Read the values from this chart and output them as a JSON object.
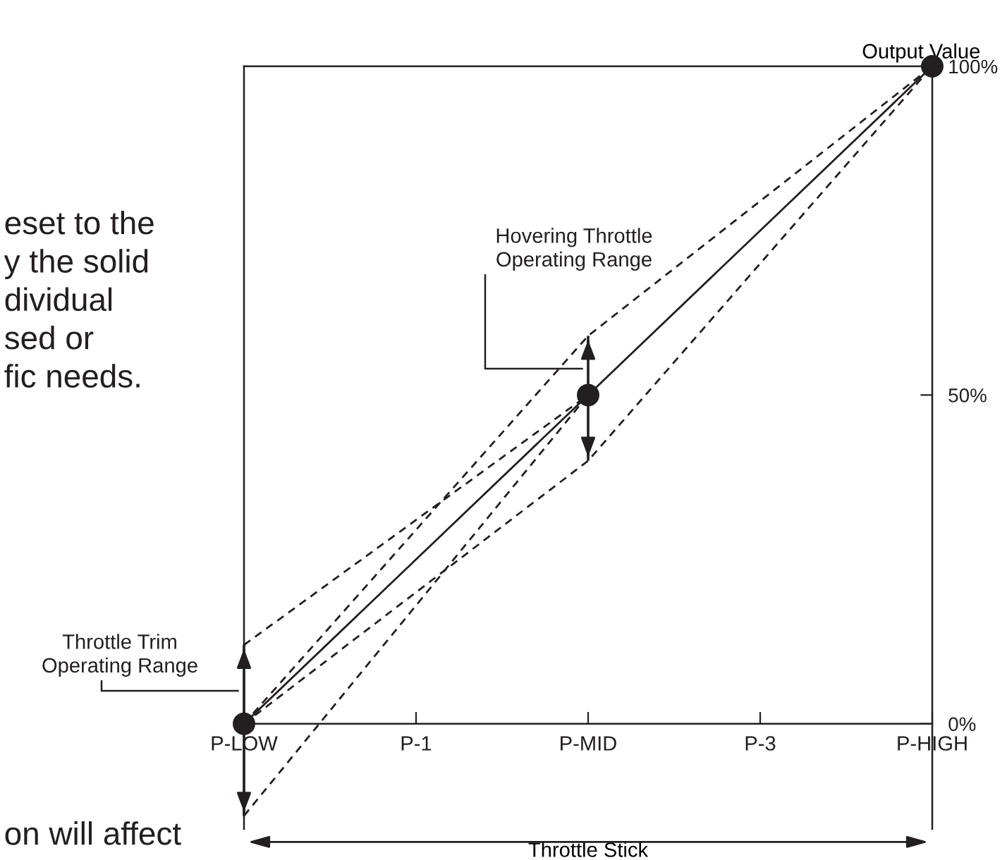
{
  "chart_data": {
    "type": "line",
    "xlabel": "Throttle Stick",
    "ylabel": "Output Value",
    "categories": [
      "P-LOW",
      "P-1",
      "P-MID",
      "P-3",
      "P-HIGH"
    ],
    "series": [
      {
        "color": "#231f20",
        "line_style": "solid",
        "marker": "none",
        "values": [
          0,
          null,
          50,
          null,
          100
        ]
      },
      {
        "color": "#231f20",
        "line_style": "dashed",
        "marker": "none",
        "values": [
          0,
          null,
          59,
          null,
          100
        ]
      },
      {
        "color": "#231f20",
        "line_style": "dashed",
        "marker": "none",
        "values": [
          0,
          null,
          40,
          null,
          100
        ]
      },
      {
        "color": "#231f20",
        "line_style": "dashed",
        "marker": "none",
        "values": [
          12,
          null,
          50,
          null,
          null
        ]
      },
      {
        "color": "#231f20",
        "line_style": "dashed",
        "marker": "none",
        "values": [
          -14,
          null,
          50,
          null,
          null
        ]
      },
      {
        "type": "scatter",
        "color": "#231f20",
        "marker": "circle",
        "values": [
          0,
          null,
          50,
          null,
          100
        ],
        "errors": [
          [
            -14,
            12
          ],
          null,
          [
            40,
            59
          ],
          null,
          null
        ]
      }
    ],
    "ylim": [
      -16,
      100
    ],
    "yticks": [
      {
        "value": 0,
        "label": "0%"
      },
      {
        "value": 50,
        "label": "50%"
      },
      {
        "value": 100,
        "label": "100%"
      }
    ],
    "grid": false,
    "legend": false,
    "annotations": [
      {
        "text": "Hovering Throttle\nOperating Range",
        "x": "P-MID",
        "y": 54
      },
      {
        "text": "Throttle Trim\nOperating Range",
        "x": "P-LOW",
        "y": 5
      },
      "eset to the\ny the solid\ndividual\nsed or\nfic needs.",
      "on will affect"
    ]
  }
}
